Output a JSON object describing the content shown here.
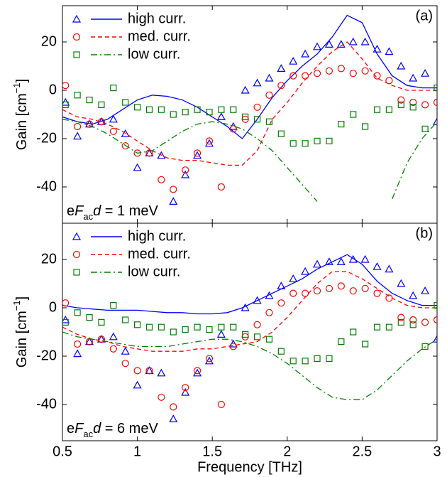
{
  "chart_data": [
    {
      "type": "line",
      "panel_label": "(a)",
      "ylabel": [
        "Gain [cm",
        "−1",
        "]"
      ],
      "annotation": [
        "e",
        "F",
        "ac",
        "d",
        " = 1 meV"
      ],
      "xlim": [
        0.5,
        3
      ],
      "xticks": [
        0.5,
        1,
        1.5,
        2,
        2.5,
        3
      ],
      "ylim": [
        -55,
        35
      ],
      "yticks": [
        -40,
        -20,
        0,
        20
      ],
      "legend": "upper left",
      "x": [
        0.52,
        0.6,
        0.68,
        0.76,
        0.84,
        0.92,
        1.0,
        1.08,
        1.16,
        1.24,
        1.32,
        1.4,
        1.48,
        1.56,
        1.64,
        1.72,
        1.8,
        1.88,
        1.96,
        2.04,
        2.12,
        2.2,
        2.28,
        2.36,
        2.44,
        2.52,
        2.6,
        2.68,
        2.76,
        2.84,
        2.92,
        3.0
      ],
      "curve_x": [
        0.5,
        0.6,
        0.7,
        0.8,
        0.9,
        1.0,
        1.1,
        1.2,
        1.3,
        1.4,
        1.5,
        1.6,
        1.7,
        1.8,
        1.9,
        2.0,
        2.1,
        2.2,
        2.3,
        2.4,
        2.5,
        2.6,
        2.7,
        2.8,
        2.9,
        3.0
      ],
      "series": [
        {
          "name": "high curr.",
          "color": "#0000ff",
          "marker": "triangle",
          "dash": "solid",
          "values": [
            -5,
            -19,
            -14,
            -13,
            -12,
            -18,
            -32,
            -26,
            -27,
            -46,
            -35,
            -27,
            -22,
            -11,
            -15,
            0,
            3,
            5,
            9,
            12,
            15,
            18,
            19,
            19,
            20,
            20,
            17,
            16,
            10,
            5,
            7,
            -13
          ],
          "curve": [
            -11,
            -13,
            -14,
            -12,
            -8,
            -4,
            -2,
            -2.5,
            -4,
            -7,
            -11,
            -15,
            -20,
            -12,
            -3,
            4,
            10,
            15,
            22,
            31,
            28,
            15,
            6,
            2,
            1,
            1
          ]
        },
        {
          "name": "med. curr.",
          "color": "#ff0000",
          "marker": "circle",
          "dash": "dashed",
          "values": [
            2,
            -15,
            -14,
            -13,
            -17,
            -23,
            -26,
            -26,
            -37,
            -41,
            -33,
            -26,
            -21,
            -40,
            -16,
            -12,
            -7,
            -2,
            2,
            6,
            6,
            7,
            8,
            9,
            7,
            8,
            6,
            4,
            -4,
            -5,
            -6,
            -5
          ],
          "curve": [
            -8,
            -11,
            -12,
            -14,
            -17,
            -21,
            -25,
            -28,
            -29,
            -29,
            -30,
            -31,
            -31,
            -25,
            -12,
            -5,
            3,
            10,
            16,
            20,
            13,
            5,
            2,
            0,
            0,
            0
          ]
        },
        {
          "name": "low curr.",
          "color": "#008000",
          "marker": "square",
          "dash": "dashdot",
          "values": [
            -6,
            -2,
            -4,
            -6,
            1,
            -5,
            -7,
            -8,
            -8,
            -10,
            -9,
            -8,
            -9,
            -8,
            -8,
            -11,
            -12,
            -13,
            -18,
            -22,
            -22,
            -21,
            -21,
            -14,
            -10,
            -15,
            -8,
            -8,
            -6,
            -7,
            -16,
            1
          ],
          "curve": [
            -12,
            -13,
            -15,
            -18,
            -22,
            -26,
            -25,
            -21,
            -17,
            -14,
            -13,
            -14,
            -16,
            -20,
            -25,
            -32,
            -39,
            -46,
            null,
            null,
            null,
            null,
            -45,
            -30,
            -20,
            -13
          ]
        }
      ]
    },
    {
      "type": "line",
      "panel_label": "(b)",
      "ylabel": [
        "Gain [cm",
        "−1",
        "]"
      ],
      "annotation": [
        "e",
        "F",
        "ac",
        "d",
        " = 6 meV"
      ],
      "xlabel": "Frequency [THz]",
      "xlim": [
        0.5,
        3
      ],
      "xticks": [
        0.5,
        1,
        1.5,
        2,
        2.5,
        3
      ],
      "ylim": [
        -55,
        35
      ],
      "yticks": [
        -40,
        -20,
        0,
        20
      ],
      "legend": "upper left",
      "x": [
        0.52,
        0.6,
        0.68,
        0.76,
        0.84,
        0.92,
        1.0,
        1.08,
        1.16,
        1.24,
        1.32,
        1.4,
        1.48,
        1.56,
        1.64,
        1.72,
        1.8,
        1.88,
        1.96,
        2.04,
        2.12,
        2.2,
        2.28,
        2.36,
        2.44,
        2.52,
        2.6,
        2.68,
        2.76,
        2.84,
        2.92,
        3.0
      ],
      "curve_x": [
        0.5,
        0.6,
        0.7,
        0.8,
        0.9,
        1.0,
        1.1,
        1.2,
        1.3,
        1.4,
        1.5,
        1.6,
        1.7,
        1.8,
        1.9,
        2.0,
        2.1,
        2.2,
        2.3,
        2.4,
        2.5,
        2.6,
        2.7,
        2.8,
        2.9,
        3.0
      ],
      "series": [
        {
          "name": "high curr.",
          "color": "#0000ff",
          "marker": "triangle",
          "dash": "solid",
          "values": [
            -5,
            -19,
            -14,
            -13,
            -12,
            -18,
            -32,
            -26,
            -27,
            -46,
            -35,
            -27,
            -22,
            -11,
            -15,
            0,
            3,
            5,
            9,
            12,
            15,
            18,
            19,
            19,
            20,
            20,
            17,
            16,
            10,
            5,
            7,
            -13
          ],
          "curve": [
            1,
            0,
            -0.5,
            -1,
            -1,
            -1,
            -1.5,
            -2,
            -2,
            -2.5,
            -2.5,
            -2,
            0,
            3,
            6,
            9,
            12,
            16,
            19,
            22,
            18,
            11,
            6,
            3,
            1,
            1
          ]
        },
        {
          "name": "med. curr.",
          "color": "#ff0000",
          "marker": "circle",
          "dash": "dashed",
          "values": [
            2,
            -15,
            -14,
            -13,
            -17,
            -23,
            -26,
            -26,
            -37,
            -41,
            -33,
            -26,
            -21,
            -40,
            -16,
            -12,
            -7,
            -2,
            2,
            6,
            6,
            7,
            8,
            9,
            7,
            8,
            6,
            4,
            -4,
            -5,
            -6,
            -5
          ],
          "curve": [
            -8,
            -11,
            -13,
            -14,
            -16,
            -17,
            -18,
            -18,
            -18,
            -17,
            -17,
            -16,
            -15,
            -14,
            -10,
            -4,
            3,
            10,
            15,
            15,
            12,
            8,
            4,
            1,
            0,
            0
          ]
        },
        {
          "name": "low curr.",
          "color": "#008000",
          "marker": "square",
          "dash": "dashdot",
          "values": [
            -6,
            -2,
            -4,
            -6,
            1,
            -5,
            -7,
            -8,
            -8,
            -10,
            -9,
            -8,
            -9,
            -8,
            -8,
            -11,
            -12,
            -13,
            -18,
            -22,
            -22,
            -21,
            -21,
            -14,
            -10,
            -15,
            -8,
            -8,
            -6,
            -7,
            -16,
            1
          ],
          "curve": [
            -10,
            -12,
            -13,
            -14,
            -15,
            -16,
            -16,
            -16,
            -15,
            -14,
            -13,
            -13,
            -14,
            -16,
            -19,
            -23,
            -28,
            -33,
            -37,
            -38,
            -38,
            -34,
            -28,
            -22,
            -17,
            -13
          ]
        }
      ]
    }
  ]
}
